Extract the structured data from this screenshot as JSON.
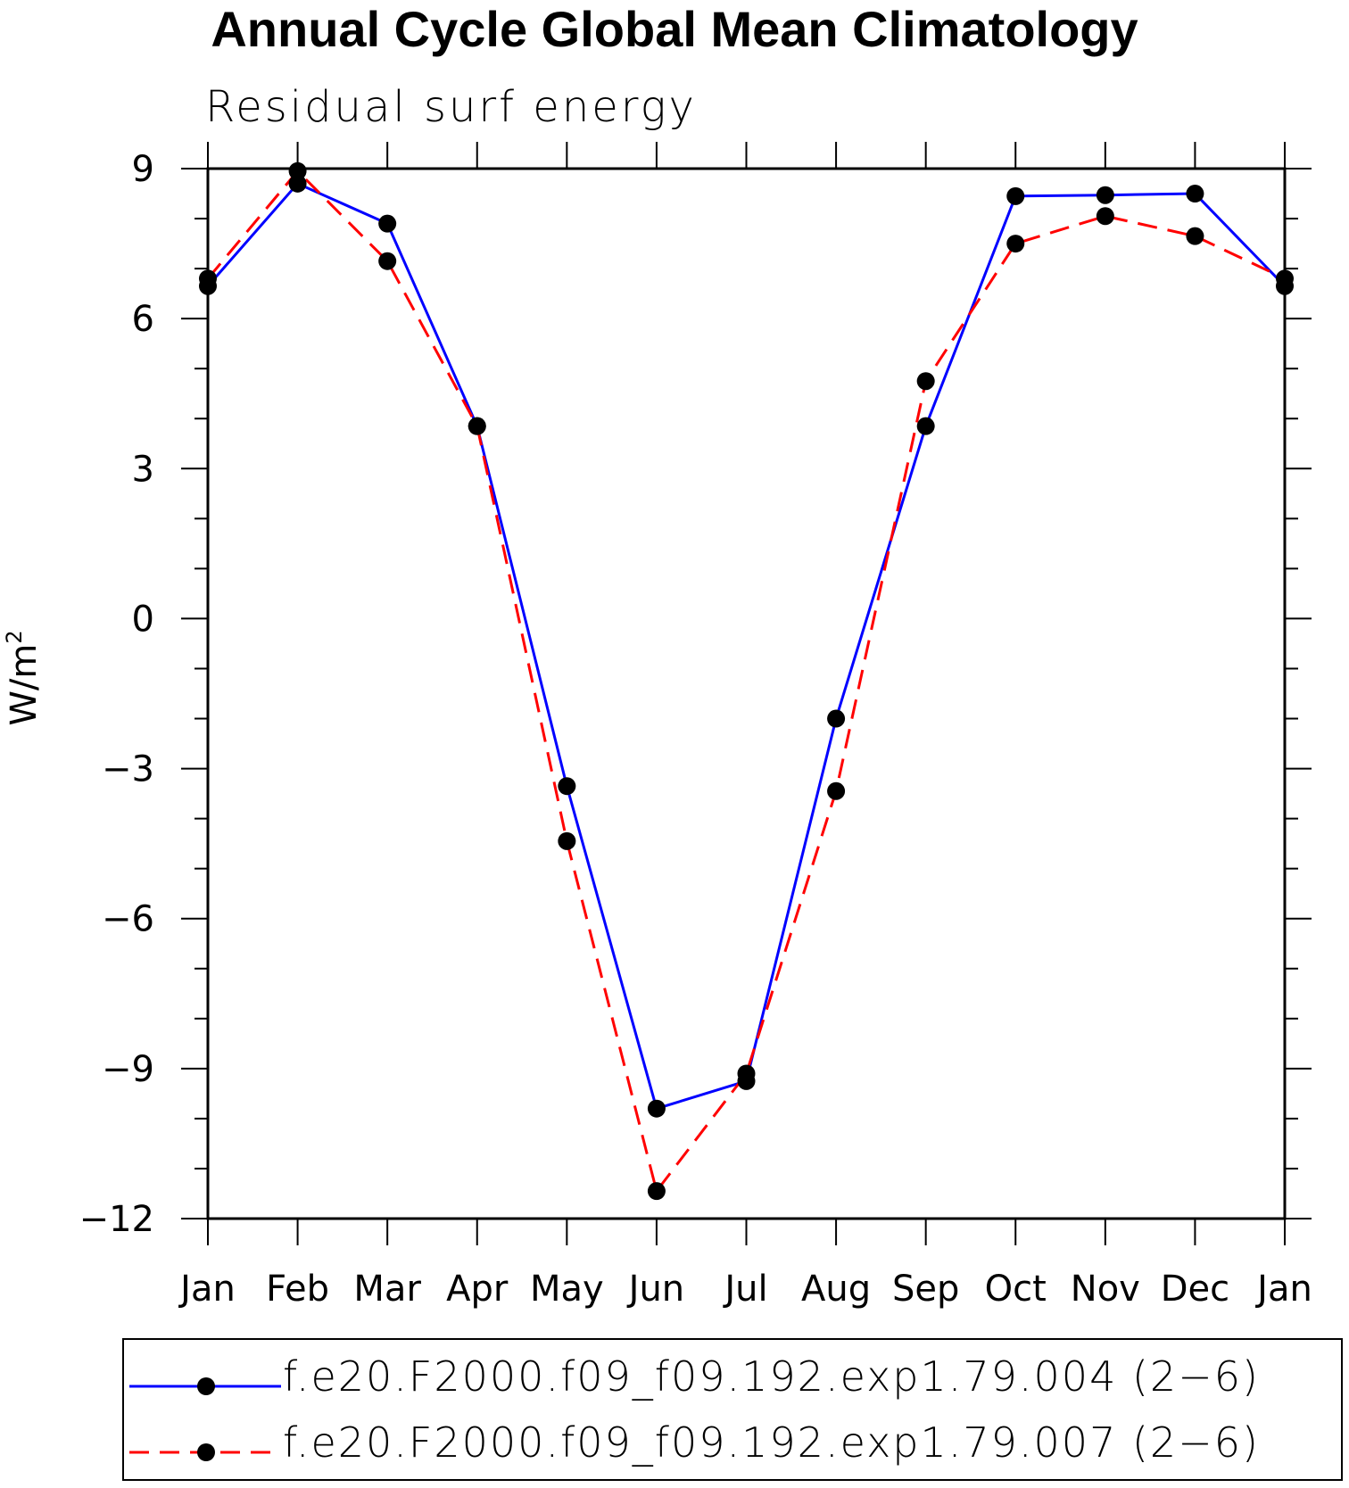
{
  "chart_data": {
    "type": "line",
    "title": "Annual Cycle Global Mean Climatology",
    "subtitle": "Residual surf energy",
    "xlabel": "",
    "ylabel": "W/m",
    "ylabel_sup": "2",
    "categories": [
      "Jan",
      "Feb",
      "Mar",
      "Apr",
      "May",
      "Jun",
      "Jul",
      "Aug",
      "Sep",
      "Oct",
      "Nov",
      "Dec",
      "Jan"
    ],
    "yticks": [
      9,
      6,
      3,
      0,
      -3,
      -6,
      -9,
      -12
    ],
    "ytick_labels": [
      "9",
      "6",
      "3",
      "0",
      "−3",
      "−6",
      "−9",
      "−12"
    ],
    "ylim": [
      -12,
      9
    ],
    "grid": false,
    "legend_position": "bottom",
    "series": [
      {
        "name": "f.e20.F2000.f09_f09.192.exp1.79.004 (2−6)",
        "color": "#0000ff",
        "dash": "solid",
        "marker": "circle",
        "values": [
          6.65,
          8.7,
          7.9,
          3.85,
          -3.35,
          -9.8,
          -9.25,
          -2.0,
          3.85,
          8.45,
          8.47,
          8.5,
          6.65
        ]
      },
      {
        "name": "f.e20.F2000.f09_f09.192.exp1.79.007 (2−6)",
        "color": "#ff0000",
        "dash": "dashed",
        "marker": "circle",
        "values": [
          6.8,
          8.95,
          7.15,
          3.85,
          -4.45,
          -11.45,
          -9.1,
          -3.45,
          4.75,
          7.5,
          8.05,
          7.65,
          6.8
        ]
      }
    ]
  }
}
